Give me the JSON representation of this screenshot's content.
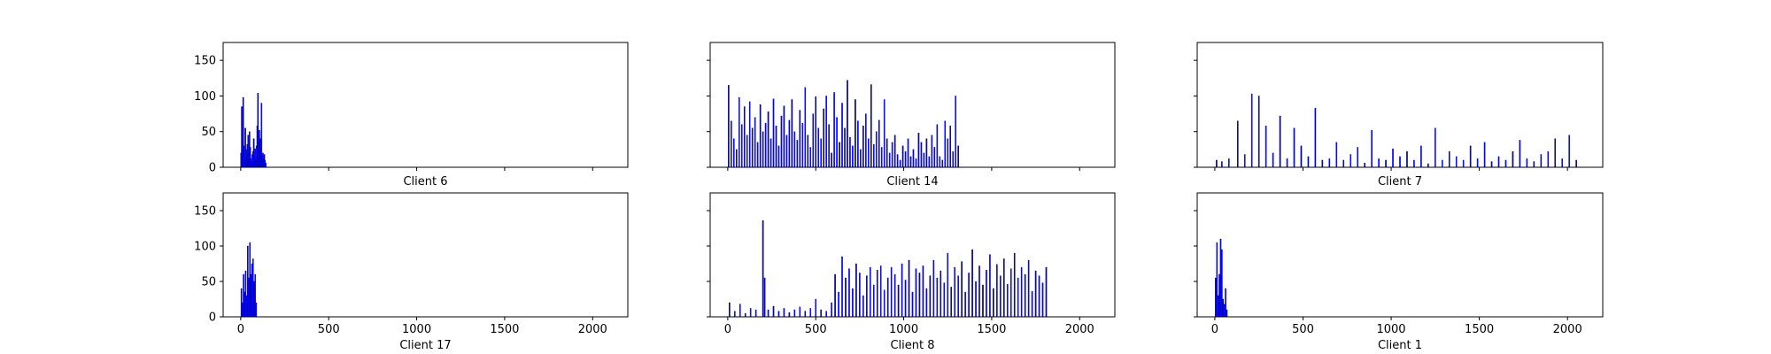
{
  "figure": {
    "background": "#ffffff",
    "bar_color": "#0000ff",
    "edge_color": "#000000"
  },
  "chart_data": [
    {
      "type": "bar",
      "title": "Client 6",
      "xlabel": "",
      "ylabel": "",
      "xlim": [
        -100,
        2200
      ],
      "ylim": [
        0,
        175
      ],
      "xticks": [
        0,
        500,
        1000,
        1500,
        2000
      ],
      "yticks": [
        0,
        50,
        100,
        150
      ],
      "x_ticklabels_shown": false,
      "y_ticklabels_shown": true,
      "x": [
        2,
        6,
        10,
        14,
        18,
        22,
        26,
        30,
        34,
        38,
        42,
        46,
        50,
        54,
        58,
        62,
        66,
        70,
        74,
        78,
        82,
        86,
        90,
        94,
        98,
        102,
        106,
        110,
        114,
        118,
        122,
        126,
        130,
        134,
        138,
        142
      ],
      "values": [
        20,
        85,
        35,
        98,
        30,
        10,
        55,
        25,
        15,
        32,
        45,
        20,
        50,
        28,
        12,
        8,
        18,
        22,
        40,
        15,
        26,
        10,
        30,
        58,
        104,
        38,
        52,
        40,
        22,
        90,
        15,
        20,
        12,
        18,
        10,
        6
      ]
    },
    {
      "type": "bar",
      "title": "Client 14",
      "xlabel": "",
      "ylabel": "",
      "xlim": [
        -100,
        2200
      ],
      "ylim": [
        0,
        175
      ],
      "xticks": [
        0,
        500,
        1000,
        1500,
        2000
      ],
      "yticks": [
        0,
        50,
        100,
        150
      ],
      "x_ticklabels_shown": false,
      "y_ticklabels_shown": false,
      "x": [
        5,
        20,
        35,
        50,
        65,
        80,
        95,
        110,
        125,
        140,
        155,
        170,
        185,
        200,
        215,
        230,
        245,
        260,
        275,
        290,
        305,
        320,
        335,
        350,
        365,
        380,
        395,
        410,
        425,
        440,
        455,
        470,
        485,
        500,
        515,
        530,
        545,
        560,
        575,
        590,
        605,
        620,
        635,
        650,
        665,
        680,
        695,
        710,
        725,
        740,
        755,
        770,
        785,
        800,
        815,
        830,
        845,
        860,
        875,
        890,
        905,
        920,
        935,
        950,
        965,
        980,
        995,
        1010,
        1025,
        1040,
        1055,
        1070,
        1085,
        1100,
        1115,
        1130,
        1145,
        1160,
        1175,
        1190,
        1205,
        1220,
        1235,
        1250,
        1265,
        1280,
        1295,
        1310
      ],
      "values": [
        115,
        65,
        40,
        25,
        98,
        60,
        85,
        45,
        92,
        55,
        70,
        35,
        88,
        50,
        62,
        78,
        40,
        96,
        58,
        30,
        72,
        86,
        45,
        66,
        95,
        50,
        38,
        80,
        62,
        112,
        45,
        28,
        75,
        99,
        55,
        40,
        82,
        100,
        60,
        20,
        105,
        70,
        35,
        90,
        55,
        122,
        42,
        30,
        95,
        65,
        25,
        58,
        75,
        40,
        116,
        32,
        50,
        66,
        28,
        95,
        40,
        20,
        35,
        45,
        18,
        10,
        30,
        22,
        40,
        15,
        25,
        12,
        48,
        35,
        20,
        40,
        15,
        45,
        28,
        60,
        15,
        10,
        65,
        40,
        58,
        22,
        100,
        30
      ]
    },
    {
      "type": "bar",
      "title": "Client 7",
      "xlabel": "",
      "ylabel": "",
      "xlim": [
        -100,
        2200
      ],
      "ylim": [
        0,
        175
      ],
      "xticks": [
        0,
        500,
        1000,
        1500,
        2000
      ],
      "yticks": [
        0,
        50,
        100,
        150
      ],
      "x_ticklabels_shown": false,
      "y_ticklabels_shown": false,
      "x": [
        10,
        40,
        80,
        130,
        170,
        210,
        250,
        290,
        330,
        370,
        410,
        450,
        490,
        530,
        570,
        610,
        650,
        690,
        730,
        770,
        810,
        850,
        890,
        930,
        970,
        1010,
        1050,
        1090,
        1130,
        1170,
        1210,
        1250,
        1290,
        1330,
        1370,
        1410,
        1450,
        1490,
        1530,
        1570,
        1610,
        1650,
        1690,
        1730,
        1770,
        1810,
        1850,
        1890,
        1930,
        1970,
        2010,
        2050
      ],
      "values": [
        10,
        8,
        12,
        65,
        18,
        103,
        100,
        58,
        20,
        72,
        12,
        55,
        30,
        15,
        83,
        10,
        12,
        35,
        10,
        18,
        28,
        6,
        52,
        12,
        10,
        26,
        15,
        22,
        10,
        30,
        5,
        55,
        10,
        22,
        15,
        10,
        30,
        12,
        35,
        8,
        15,
        10,
        22,
        38,
        12,
        8,
        18,
        22,
        40,
        12,
        45,
        10
      ]
    },
    {
      "type": "bar",
      "title": "",
      "xlabel": "Client 17",
      "ylabel": "",
      "xlim": [
        -100,
        2200
      ],
      "ylim": [
        0,
        175
      ],
      "xticks": [
        0,
        500,
        1000,
        1500,
        2000
      ],
      "yticks": [
        0,
        50,
        100,
        150
      ],
      "x_ticklabels_shown": true,
      "y_ticklabels_shown": true,
      "x": [
        4,
        10,
        16,
        22,
        28,
        34,
        40,
        46,
        52,
        58,
        64,
        70,
        76,
        82,
        88
      ],
      "values": [
        40,
        20,
        60,
        35,
        65,
        30,
        100,
        55,
        105,
        60,
        75,
        82,
        50,
        60,
        20
      ]
    },
    {
      "type": "bar",
      "title": "",
      "xlabel": "Client 8",
      "ylabel": "",
      "xlim": [
        -100,
        2200
      ],
      "ylim": [
        0,
        175
      ],
      "xticks": [
        0,
        500,
        1000,
        1500,
        2000
      ],
      "yticks": [
        0,
        50,
        100,
        150
      ],
      "x_ticklabels_shown": true,
      "y_ticklabels_shown": false,
      "x": [
        10,
        40,
        70,
        100,
        130,
        160,
        200,
        210,
        230,
        260,
        290,
        320,
        350,
        380,
        410,
        440,
        470,
        500,
        530,
        560,
        590,
        610,
        630,
        650,
        670,
        690,
        710,
        730,
        750,
        770,
        790,
        810,
        830,
        850,
        870,
        890,
        910,
        930,
        950,
        970,
        990,
        1010,
        1030,
        1050,
        1070,
        1090,
        1110,
        1130,
        1150,
        1170,
        1190,
        1210,
        1230,
        1250,
        1270,
        1290,
        1310,
        1330,
        1350,
        1370,
        1390,
        1410,
        1430,
        1450,
        1470,
        1490,
        1510,
        1530,
        1550,
        1570,
        1590,
        1610,
        1630,
        1650,
        1670,
        1690,
        1710,
        1730,
        1750,
        1770,
        1790,
        1810
      ],
      "values": [
        20,
        8,
        18,
        5,
        12,
        10,
        136,
        55,
        10,
        15,
        8,
        12,
        6,
        10,
        14,
        8,
        12,
        25,
        10,
        8,
        20,
        60,
        35,
        85,
        55,
        68,
        40,
        75,
        62,
        30,
        58,
        70,
        45,
        66,
        72,
        38,
        55,
        70,
        60,
        45,
        75,
        52,
        80,
        35,
        68,
        62,
        72,
        40,
        58,
        80,
        55,
        65,
        48,
        90,
        42,
        70,
        58,
        78,
        35,
        62,
        95,
        50,
        72,
        45,
        66,
        88,
        40,
        74,
        58,
        82,
        46,
        68,
        90,
        55,
        70,
        60,
        80,
        36,
        65,
        58,
        48,
        70
      ]
    },
    {
      "type": "bar",
      "title": "",
      "xlabel": "Client 1",
      "ylabel": "",
      "xlim": [
        -100,
        2200
      ],
      "ylim": [
        0,
        175
      ],
      "xticks": [
        0,
        500,
        1000,
        1500,
        2000
      ],
      "yticks": [
        0,
        50,
        100,
        150
      ],
      "x_ticklabels_shown": true,
      "y_ticklabels_shown": false,
      "x": [
        5,
        12,
        19,
        26,
        33,
        40,
        47,
        54,
        61,
        68
      ],
      "values": [
        55,
        105,
        30,
        60,
        110,
        95,
        25,
        18,
        40,
        10
      ]
    }
  ]
}
